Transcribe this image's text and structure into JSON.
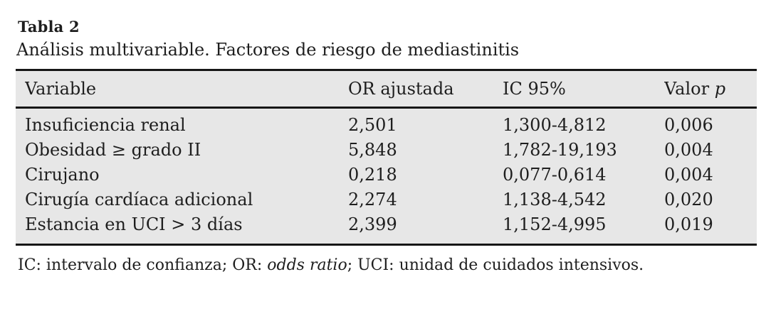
{
  "caption": {
    "label": "Tabla 2",
    "description": "Análisis multivariable. Factores de riesgo de mediastinitis"
  },
  "table": {
    "headers": {
      "variable": "Variable",
      "or": "OR ajustada",
      "ic": "IC 95%",
      "p_prefix": "Valor",
      "p_italic": "p"
    },
    "rows": [
      {
        "variable": "Insuficiencia renal",
        "or": "2,501",
        "ic": "1,300-4,812",
        "p": "0,006"
      },
      {
        "variable": "Obesidad ≥ grado II",
        "or": "5,848",
        "ic": "1,782-19,193",
        "p": "0,004"
      },
      {
        "variable": "Cirujano",
        "or": "0,218",
        "ic": "0,077-0,614",
        "p": "0,004"
      },
      {
        "variable": "Cirugía cardíaca adicional",
        "or": "2,274",
        "ic": "1,138-4,542",
        "p": "0,020"
      },
      {
        "variable": "Estancia en UCI > 3 días",
        "or": "2,399",
        "ic": "1,152-4,995",
        "p": "0,019"
      }
    ]
  },
  "footnote": {
    "part1": "IC: intervalo de confianza; OR:",
    "italic": "odds ratio",
    "part2": "; UCI: unidad de cuidados intensivos."
  },
  "colors": {
    "table_background": "#e7e7e7",
    "rule": "#161616",
    "text": "#1e1e1e",
    "page_background": "#ffffff"
  }
}
